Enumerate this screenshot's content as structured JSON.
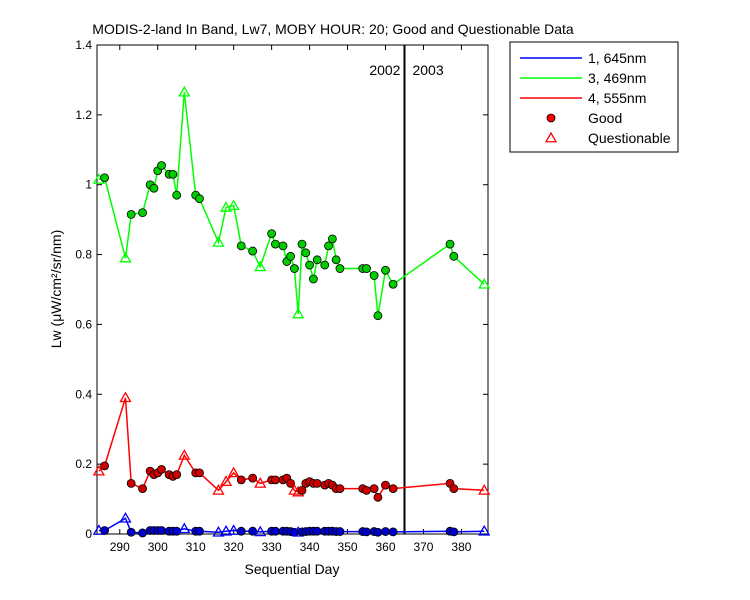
{
  "chart_data": {
    "type": "line",
    "title": "MODIS-2-land In Band,  Lw7, MOBY HOUR: 20;  Good and Questionable Data",
    "xlabel": "Sequential Day",
    "ylabel": "Lw (μW/cm²/sr/nm)",
    "xlim": [
      284,
      387
    ],
    "ylim": [
      0,
      1.4
    ],
    "xticks": [
      290,
      300,
      310,
      320,
      330,
      340,
      350,
      360,
      370,
      380
    ],
    "yticks": [
      0,
      0.2,
      0.4,
      0.6,
      0.8,
      1,
      1.2,
      1.4
    ],
    "year_divider": {
      "x": 365,
      "left_label": "2002",
      "right_label": "2003"
    },
    "legend": {
      "placement": "outside-top-right",
      "entries": [
        {
          "label": "1, 645nm",
          "kind": "line",
          "color": "#0000ff"
        },
        {
          "label": "3, 469nm",
          "kind": "line",
          "color": "#00ff00"
        },
        {
          "label": "4, 555nm",
          "kind": "line",
          "color": "#ff0000"
        },
        {
          "label": "Good",
          "kind": "marker-circle",
          "color": "#ff0000"
        },
        {
          "label": "Questionable",
          "kind": "marker-triangle",
          "color": "#ff0000"
        }
      ]
    },
    "series": [
      {
        "name": "3, 469nm",
        "color": "#00ff00",
        "marker_fill": "#00cc00",
        "points": [
          [
            284.5,
            1.015,
            "Q"
          ],
          [
            286,
            1.02,
            "G"
          ],
          [
            291.5,
            0.79,
            "Q"
          ],
          [
            293,
            0.915,
            "G"
          ],
          [
            296,
            0.92,
            "G"
          ],
          [
            298,
            1.0,
            "G"
          ],
          [
            299,
            0.99,
            "G"
          ],
          [
            300,
            1.04,
            "G"
          ],
          [
            301,
            1.055,
            "G"
          ],
          [
            303,
            1.03,
            "G"
          ],
          [
            304,
            1.03,
            "G"
          ],
          [
            305,
            0.97,
            "G"
          ],
          [
            307,
            1.265,
            "Q"
          ],
          [
            310,
            0.97,
            "G"
          ],
          [
            311,
            0.96,
            "G"
          ],
          [
            316,
            0.835,
            "Q"
          ],
          [
            318,
            0.935,
            "Q"
          ],
          [
            320,
            0.94,
            "Q"
          ],
          [
            322,
            0.825,
            "G"
          ],
          [
            325,
            0.81,
            "G"
          ],
          [
            327,
            0.765,
            "Q"
          ],
          [
            330,
            0.86,
            "G"
          ],
          [
            331,
            0.83,
            "G"
          ],
          [
            333,
            0.825,
            "G"
          ],
          [
            334,
            0.78,
            "G"
          ],
          [
            335,
            0.795,
            "G"
          ],
          [
            336,
            0.76,
            "G"
          ],
          [
            337,
            0.63,
            "Q"
          ],
          [
            338,
            0.83,
            "G"
          ],
          [
            339,
            0.805,
            "G"
          ],
          [
            340,
            0.77,
            "G"
          ],
          [
            341,
            0.73,
            "G"
          ],
          [
            342,
            0.785,
            "G"
          ],
          [
            344,
            0.77,
            "G"
          ],
          [
            345,
            0.825,
            "G"
          ],
          [
            346,
            0.845,
            "G"
          ],
          [
            347,
            0.785,
            "G"
          ],
          [
            348,
            0.76,
            "G"
          ],
          [
            354,
            0.76,
            "G"
          ],
          [
            355,
            0.76,
            "G"
          ],
          [
            357,
            0.74,
            "G"
          ],
          [
            358,
            0.625,
            "G"
          ],
          [
            360,
            0.755,
            "G"
          ],
          [
            362,
            0.715,
            "G"
          ],
          [
            377,
            0.83,
            "G"
          ],
          [
            378,
            0.795,
            "G"
          ],
          [
            386,
            0.715,
            "Q"
          ]
        ]
      },
      {
        "name": "4, 555nm",
        "color": "#ff0000",
        "marker_fill": "#cc0000",
        "points": [
          [
            284.5,
            0.18,
            "Q"
          ],
          [
            286,
            0.195,
            "G"
          ],
          [
            291.5,
            0.39,
            "Q"
          ],
          [
            293,
            0.145,
            "G"
          ],
          [
            296,
            0.13,
            "G"
          ],
          [
            298,
            0.18,
            "G"
          ],
          [
            299,
            0.17,
            "G"
          ],
          [
            300,
            0.175,
            "G"
          ],
          [
            301,
            0.185,
            "G"
          ],
          [
            303,
            0.17,
            "G"
          ],
          [
            304,
            0.165,
            "G"
          ],
          [
            305,
            0.17,
            "G"
          ],
          [
            307,
            0.225,
            "Q"
          ],
          [
            310,
            0.175,
            "G"
          ],
          [
            311,
            0.175,
            "G"
          ],
          [
            316,
            0.125,
            "Q"
          ],
          [
            318,
            0.15,
            "Q"
          ],
          [
            320,
            0.175,
            "Q"
          ],
          [
            322,
            0.155,
            "G"
          ],
          [
            325,
            0.16,
            "G"
          ],
          [
            327,
            0.145,
            "Q"
          ],
          [
            330,
            0.155,
            "G"
          ],
          [
            331,
            0.155,
            "G"
          ],
          [
            333,
            0.155,
            "G"
          ],
          [
            334,
            0.16,
            "G"
          ],
          [
            335,
            0.145,
            "G"
          ],
          [
            336,
            0.125,
            "Q"
          ],
          [
            337,
            0.12,
            "Q"
          ],
          [
            338,
            0.125,
            "G"
          ],
          [
            339,
            0.145,
            "G"
          ],
          [
            340,
            0.15,
            "G"
          ],
          [
            341,
            0.145,
            "G"
          ],
          [
            342,
            0.145,
            "G"
          ],
          [
            344,
            0.14,
            "G"
          ],
          [
            345,
            0.145,
            "G"
          ],
          [
            346,
            0.14,
            "G"
          ],
          [
            347,
            0.13,
            "G"
          ],
          [
            348,
            0.13,
            "G"
          ],
          [
            354,
            0.13,
            "G"
          ],
          [
            355,
            0.125,
            "G"
          ],
          [
            357,
            0.13,
            "G"
          ],
          [
            358,
            0.105,
            "G"
          ],
          [
            360,
            0.14,
            "G"
          ],
          [
            362,
            0.13,
            "G"
          ],
          [
            377,
            0.145,
            "G"
          ],
          [
            378,
            0.13,
            "G"
          ],
          [
            386,
            0.125,
            "Q"
          ]
        ]
      },
      {
        "name": "1, 645nm",
        "color": "#0000ff",
        "marker_fill": "#0000cc",
        "points": [
          [
            284.5,
            0.01,
            "Q"
          ],
          [
            286,
            0.01,
            "G"
          ],
          [
            291.5,
            0.045,
            "Q"
          ],
          [
            293,
            0.005,
            "G"
          ],
          [
            296,
            0.003,
            "G"
          ],
          [
            298,
            0.01,
            "G"
          ],
          [
            299,
            0.01,
            "G"
          ],
          [
            300,
            0.01,
            "G"
          ],
          [
            301,
            0.01,
            "G"
          ],
          [
            303,
            0.008,
            "G"
          ],
          [
            304,
            0.008,
            "G"
          ],
          [
            305,
            0.008,
            "G"
          ],
          [
            307,
            0.015,
            "Q"
          ],
          [
            310,
            0.008,
            "G"
          ],
          [
            311,
            0.008,
            "G"
          ],
          [
            316,
            0.005,
            "Q"
          ],
          [
            318,
            0.008,
            "Q"
          ],
          [
            320,
            0.01,
            "Q"
          ],
          [
            322,
            0.008,
            "G"
          ],
          [
            325,
            0.008,
            "G"
          ],
          [
            327,
            0.006,
            "Q"
          ],
          [
            330,
            0.008,
            "G"
          ],
          [
            331,
            0.008,
            "G"
          ],
          [
            333,
            0.008,
            "G"
          ],
          [
            334,
            0.008,
            "G"
          ],
          [
            335,
            0.007,
            "G"
          ],
          [
            336,
            0.005,
            "G"
          ],
          [
            337,
            0.005,
            "Q"
          ],
          [
            338,
            0.006,
            "G"
          ],
          [
            339,
            0.007,
            "G"
          ],
          [
            340,
            0.008,
            "G"
          ],
          [
            341,
            0.008,
            "G"
          ],
          [
            342,
            0.008,
            "G"
          ],
          [
            344,
            0.008,
            "G"
          ],
          [
            345,
            0.008,
            "G"
          ],
          [
            346,
            0.008,
            "G"
          ],
          [
            347,
            0.007,
            "G"
          ],
          [
            348,
            0.007,
            "G"
          ],
          [
            354,
            0.007,
            "G"
          ],
          [
            355,
            0.006,
            "G"
          ],
          [
            357,
            0.007,
            "G"
          ],
          [
            358,
            0.005,
            "G"
          ],
          [
            360,
            0.007,
            "G"
          ],
          [
            362,
            0.006,
            "G"
          ],
          [
            377,
            0.008,
            "G"
          ],
          [
            378,
            0.006,
            "G"
          ],
          [
            386,
            0.008,
            "Q"
          ]
        ]
      }
    ]
  }
}
